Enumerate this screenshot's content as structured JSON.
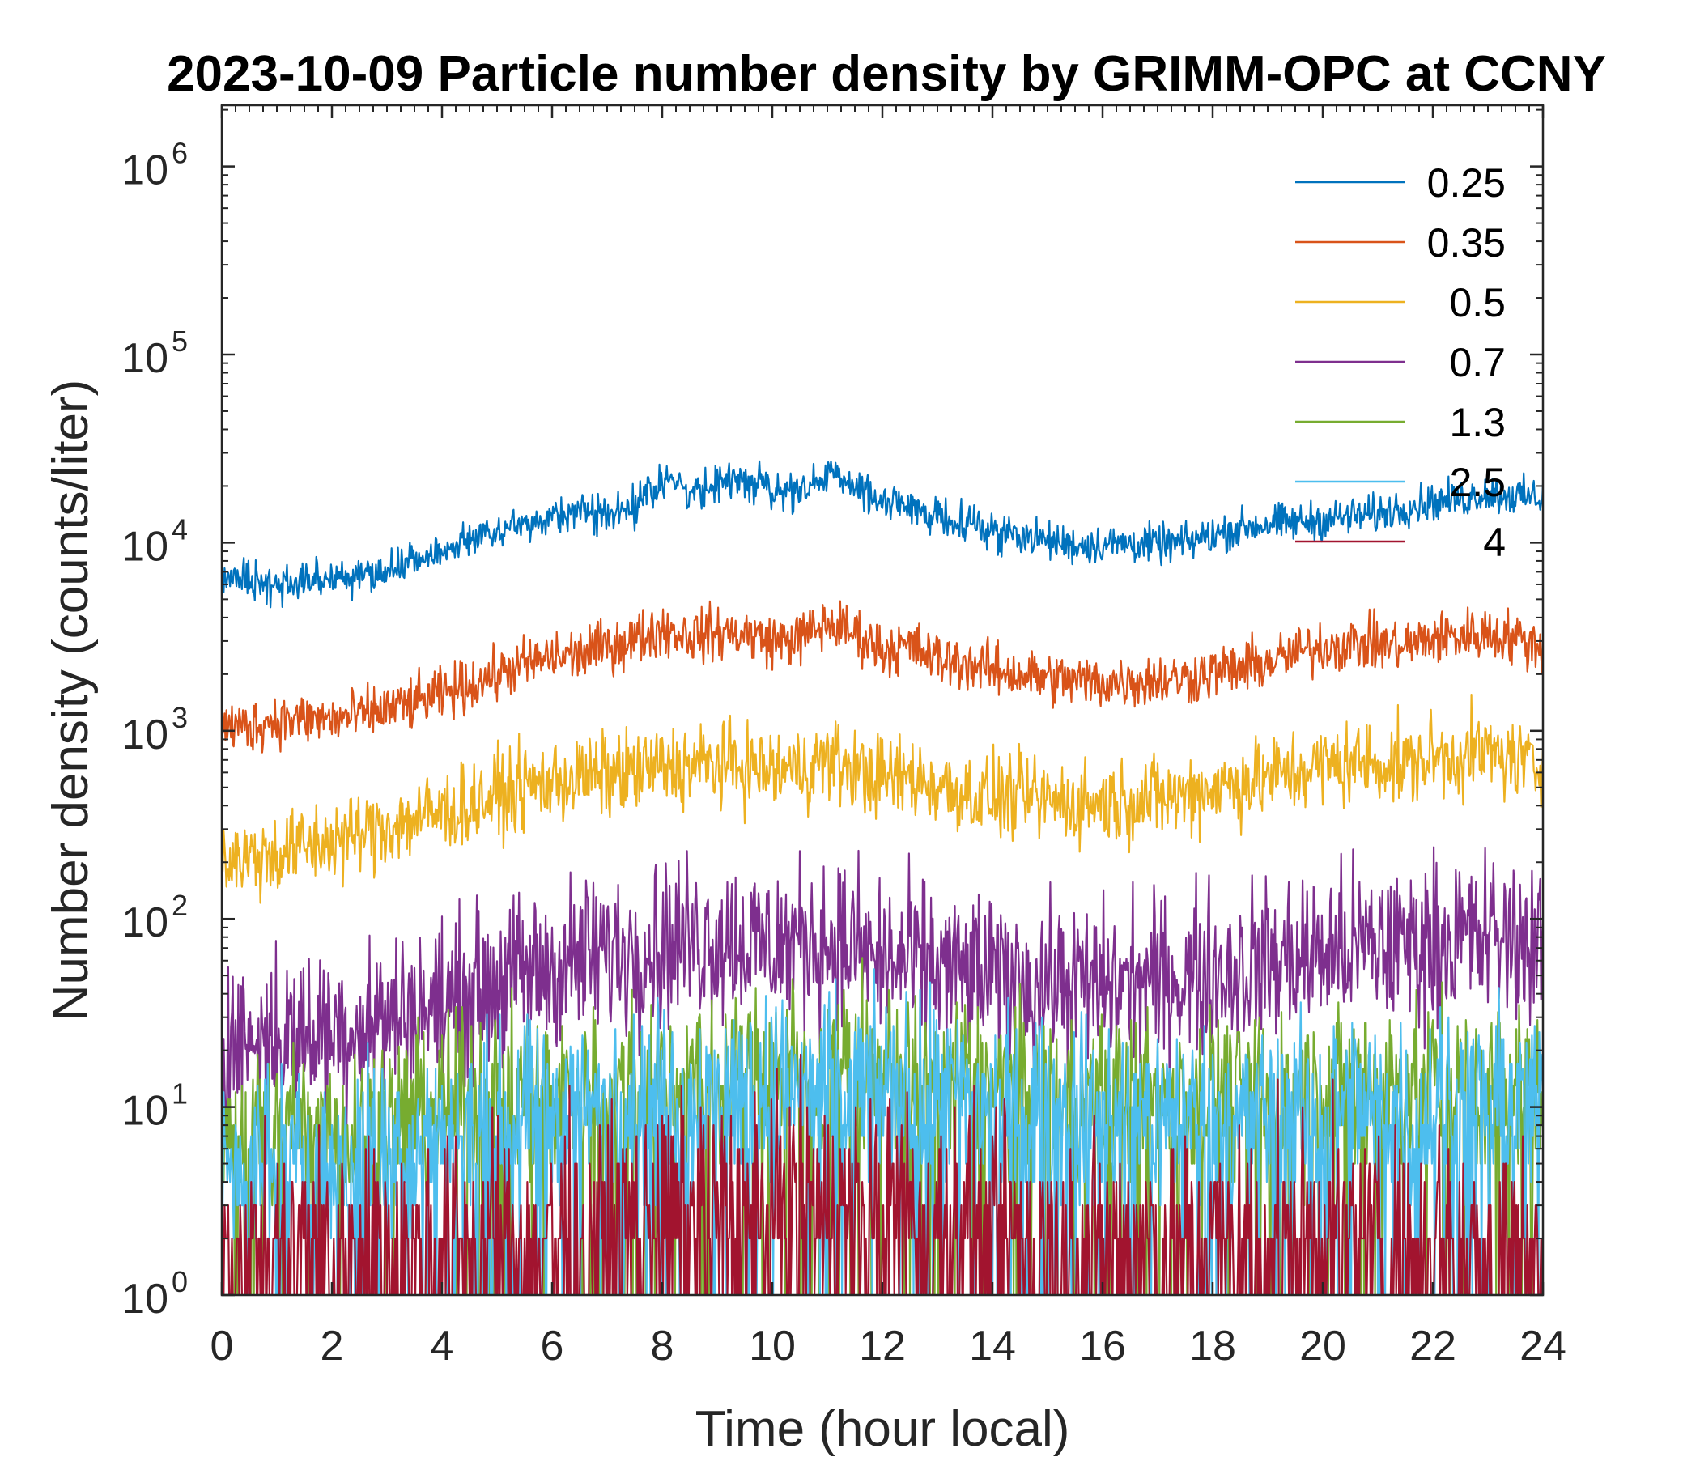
{
  "chart_data": {
    "type": "line",
    "title": "2023-10-09 Particle number density by GRIMM-OPC at CCNY",
    "xlabel": "Time (hour local)",
    "ylabel": "Number density (counts/liter)",
    "xlim": [
      0,
      24
    ],
    "ylim": [
      1,
      2000000
    ],
    "yscale": "log",
    "x_ticks": [
      0,
      2,
      4,
      6,
      8,
      10,
      12,
      14,
      16,
      18,
      20,
      22,
      24
    ],
    "y_ticks": [
      {
        "value": 1,
        "base": "10",
        "exp": "0"
      },
      {
        "value": 10,
        "base": "10",
        "exp": "1"
      },
      {
        "value": 100,
        "base": "10",
        "exp": "2"
      },
      {
        "value": 1000,
        "base": "10",
        "exp": "3"
      },
      {
        "value": 10000,
        "base": "10",
        "exp": "4"
      },
      {
        "value": 100000,
        "base": "10",
        "exp": "5"
      },
      {
        "value": 1000000,
        "base": "10",
        "exp": "6"
      }
    ],
    "legend_position": "top-right",
    "series": [
      {
        "name": "0.25",
        "color": "#0072BD",
        "noise": 0.05,
        "x": [
          0,
          0.3,
          0.6,
          1.0,
          1.5,
          2.0,
          2.5,
          3.0,
          3.5,
          4.0,
          4.5,
          5.0,
          5.5,
          6.0,
          6.5,
          7.0,
          7.5,
          8.0,
          8.5,
          9.0,
          9.5,
          10.0,
          10.5,
          11.0,
          11.5,
          12.0,
          12.5,
          13.0,
          13.5,
          14.0,
          14.5,
          15.0,
          15.5,
          16.0,
          16.5,
          17.0,
          17.5,
          18.0,
          18.5,
          19.0,
          19.5,
          20.0,
          20.5,
          21.0,
          21.5,
          22.0,
          22.5,
          23.0,
          23.5,
          24.0
        ],
        "values": [
          6500,
          6300,
          6200,
          6000,
          6400,
          6300,
          6600,
          7000,
          7800,
          9000,
          10500,
          11500,
          12800,
          13800,
          14500,
          14700,
          15500,
          21500,
          19500,
          20500,
          21000,
          19500,
          18000,
          23000,
          20000,
          16500,
          15000,
          14000,
          13000,
          11500,
          11200,
          10200,
          9700,
          9800,
          9900,
          9800,
          9900,
          11000,
          12000,
          12500,
          12800,
          13200,
          13800,
          14200,
          15500,
          16500,
          17000,
          18500,
          17500,
          17500
        ]
      },
      {
        "name": "0.35",
        "color": "#D95319",
        "noise": 0.07,
        "x": [
          0,
          0.5,
          1.0,
          1.5,
          2.0,
          2.5,
          3.0,
          3.5,
          4.0,
          4.5,
          5.0,
          5.5,
          6.0,
          6.5,
          7.0,
          7.5,
          8.0,
          8.5,
          9.0,
          9.5,
          10.0,
          10.5,
          11.0,
          11.5,
          12.0,
          12.5,
          13.0,
          13.5,
          14.0,
          14.5,
          15.0,
          15.5,
          16.0,
          16.5,
          17.0,
          17.5,
          18.0,
          18.5,
          19.0,
          19.5,
          20.0,
          20.5,
          21.0,
          21.5,
          22.0,
          22.5,
          23.0,
          23.5,
          24.0
        ],
        "values": [
          1050,
          1050,
          1150,
          1150,
          1150,
          1200,
          1300,
          1400,
          1550,
          1750,
          2000,
          2250,
          2450,
          2550,
          2800,
          3050,
          3500,
          3200,
          3300,
          3300,
          3000,
          3100,
          3700,
          3300,
          2700,
          2800,
          2400,
          2300,
          2100,
          2000,
          1900,
          1850,
          1800,
          1850,
          1850,
          1900,
          2050,
          2150,
          2300,
          2550,
          2800,
          2900,
          2900,
          2800,
          3100,
          3200,
          3300,
          3100,
          2800
        ]
      },
      {
        "name": "0.5",
        "color": "#EDB120",
        "noise": 0.11,
        "x": [
          0,
          0.5,
          1.0,
          1.5,
          2.0,
          2.5,
          3.0,
          3.5,
          4.0,
          4.5,
          5.0,
          5.5,
          6.0,
          6.5,
          7.0,
          7.5,
          8.0,
          8.5,
          9.0,
          9.5,
          10.0,
          10.5,
          11.0,
          11.5,
          12.0,
          12.5,
          13.0,
          13.5,
          14.0,
          14.5,
          15.0,
          15.5,
          16.0,
          16.5,
          17.0,
          17.5,
          18.0,
          18.5,
          19.0,
          19.5,
          20.0,
          20.5,
          21.0,
          21.5,
          22.0,
          22.5,
          23.0,
          23.5,
          24.0
        ],
        "values": [
          210,
          210,
          220,
          240,
          260,
          280,
          310,
          340,
          370,
          400,
          450,
          500,
          540,
          560,
          580,
          600,
          640,
          650,
          660,
          650,
          610,
          630,
          700,
          620,
          560,
          570,
          510,
          470,
          440,
          440,
          430,
          410,
          420,
          430,
          440,
          460,
          500,
          530,
          560,
          600,
          650,
          680,
          680,
          650,
          720,
          740,
          760,
          700,
          620
        ]
      },
      {
        "name": "0.7",
        "color": "#7E2F8E",
        "noise": 0.22,
        "x": [
          0,
          1.0,
          2.0,
          3.0,
          4.0,
          5.0,
          6.0,
          7.0,
          8.0,
          9.0,
          10.0,
          11.0,
          12.0,
          13.0,
          14.0,
          15.0,
          16.0,
          17.0,
          18.0,
          19.0,
          20.0,
          21.0,
          22.0,
          23.0,
          24.0
        ],
        "values": [
          22,
          23,
          26,
          30,
          35,
          45,
          55,
          65,
          75,
          80,
          72,
          78,
          60,
          55,
          48,
          45,
          44,
          47,
          52,
          58,
          66,
          72,
          76,
          80,
          75
        ]
      },
      {
        "name": "1.3",
        "color": "#77AC30",
        "noise": 0.22,
        "x": [
          0,
          2,
          4,
          6,
          8,
          10,
          12,
          14,
          16,
          18,
          20,
          22,
          24
        ],
        "values": [
          8,
          8,
          10,
          12,
          14,
          16,
          16,
          13,
          12,
          12,
          12,
          13,
          13
        ]
      },
      {
        "name": "2.5",
        "color": "#4DBEEE",
        "noise": 0.25,
        "x": [
          0,
          2,
          4,
          6,
          8,
          10,
          12,
          14,
          16,
          18,
          20,
          22,
          24
        ],
        "values": [
          5,
          5,
          7,
          9,
          11,
          12,
          12,
          10,
          9,
          9,
          9,
          10,
          10
        ]
      },
      {
        "name": "4",
        "color": "#A2142F",
        "noise": 0.3,
        "x": [
          0,
          2,
          4,
          6,
          8,
          10,
          12,
          14,
          16,
          18,
          20,
          22,
          24
        ],
        "values": [
          1.5,
          1.6,
          1.8,
          2,
          2.6,
          3,
          3,
          2.2,
          1.9,
          1.9,
          1.9,
          2,
          2
        ]
      }
    ]
  }
}
